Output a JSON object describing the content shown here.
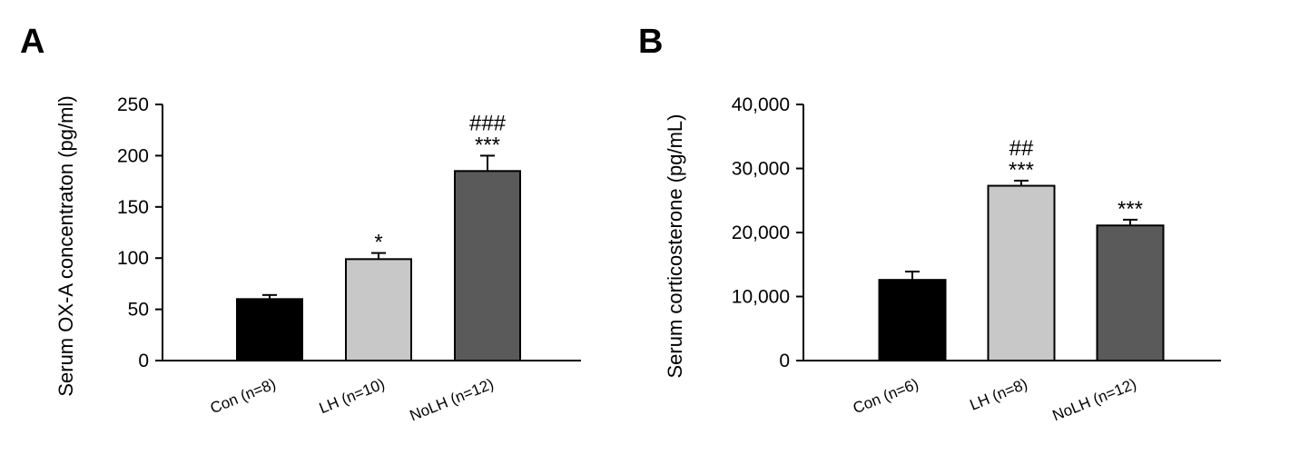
{
  "chart_data": [
    {
      "panel": "A",
      "type": "bar",
      "ylabel": "Serum OX-A concentraton (pg/ml)",
      "ylim": [
        0,
        250
      ],
      "yticks": [
        0,
        50,
        100,
        150,
        200,
        250
      ],
      "ytick_labels": [
        "0",
        "50",
        "100",
        "150",
        "200",
        "250"
      ],
      "categories": [
        "Con (n=8)",
        "LH (n=10)",
        "NoLH (n=12)"
      ],
      "values": [
        60,
        99,
        185
      ],
      "errors": [
        4,
        6,
        15
      ],
      "colors": [
        "#000000",
        "#c8c8c8",
        "#5a5a5a"
      ],
      "annotations": [
        {
          "category_index": 1,
          "lines": [
            "*"
          ]
        },
        {
          "category_index": 2,
          "lines": [
            "###",
            "***"
          ]
        }
      ]
    },
    {
      "panel": "B",
      "type": "bar",
      "ylabel": "Serum corticosterone (pg/mL)",
      "ylim": [
        0,
        40000
      ],
      "yticks": [
        0,
        10000,
        20000,
        30000,
        40000
      ],
      "ytick_labels": [
        "0",
        "10,000",
        "20,000",
        "30,000",
        "40,000"
      ],
      "categories": [
        "Con (n=6)",
        "LH (n=8)",
        "NoLH (n=12)"
      ],
      "values": [
        12600,
        27300,
        21100
      ],
      "errors": [
        1300,
        800,
        900
      ],
      "colors": [
        "#000000",
        "#c8c8c8",
        "#5a5a5a"
      ],
      "annotations": [
        {
          "category_index": 1,
          "lines": [
            "##",
            "***"
          ]
        },
        {
          "category_index": 2,
          "lines": [
            "***"
          ]
        }
      ]
    }
  ]
}
